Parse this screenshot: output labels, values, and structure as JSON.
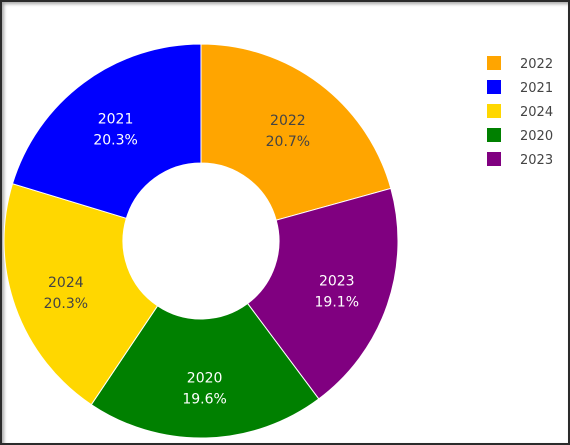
{
  "chart_data": {
    "type": "pie",
    "hole": true,
    "direction": "clockwise",
    "slices": [
      {
        "label": "2022",
        "percent": "20.7%",
        "value": 20.7,
        "color": "#FFA500",
        "text_color": "#444444"
      },
      {
        "label": "2023",
        "percent": "19.1%",
        "value": 19.1,
        "color": "#800080",
        "text_color": "#ffffff"
      },
      {
        "label": "2020",
        "percent": "19.6%",
        "value": 19.6,
        "color": "#008000",
        "text_color": "#ffffff"
      },
      {
        "label": "2024",
        "percent": "20.3%",
        "value": 20.3,
        "color": "#FFD700",
        "text_color": "#444444"
      },
      {
        "label": "2021",
        "percent": "20.3%",
        "value": 20.3,
        "color": "#0000FF",
        "text_color": "#ffffff"
      }
    ],
    "legend": {
      "placement": "top-right",
      "items": [
        {
          "label": "2022",
          "color": "#FFA500"
        },
        {
          "label": "2021",
          "color": "#0000FF"
        },
        {
          "label": "2024",
          "color": "#FFD700"
        },
        {
          "label": "2020",
          "color": "#008000"
        },
        {
          "label": "2023",
          "color": "#800080"
        }
      ]
    }
  }
}
